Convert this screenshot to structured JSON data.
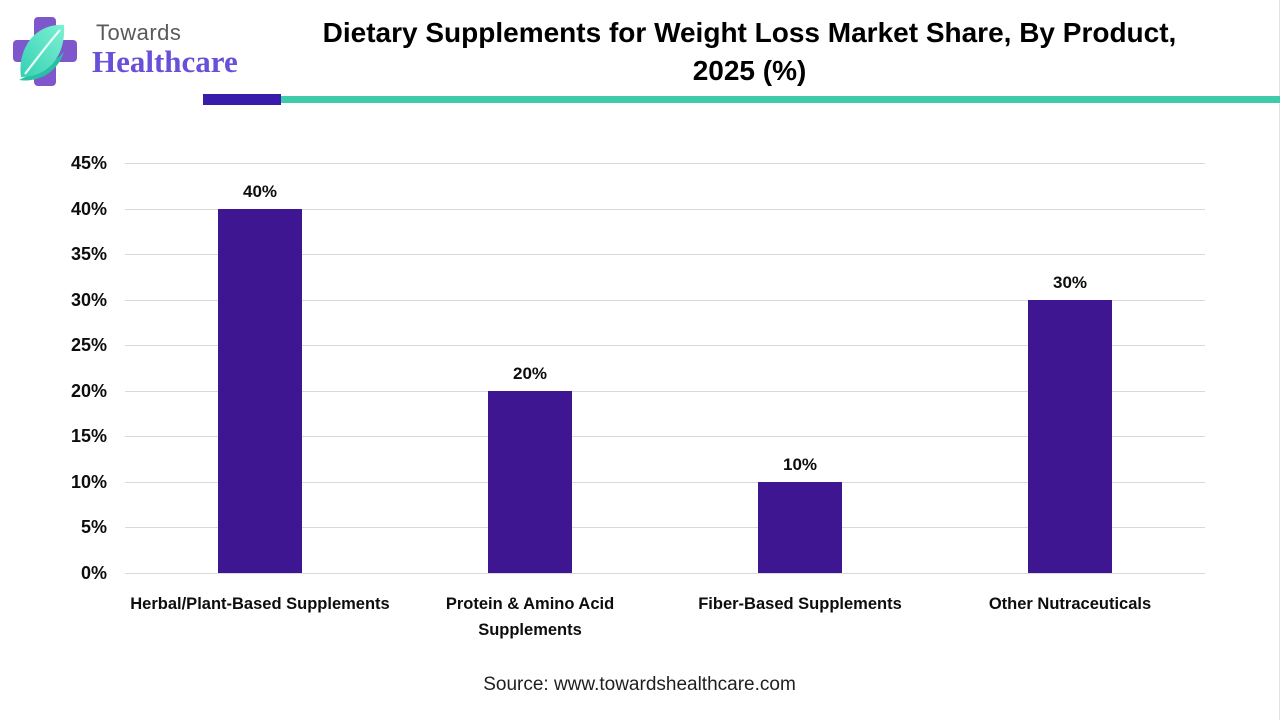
{
  "header": {
    "logo_towards": "Towards",
    "logo_healthcare": "Healthcare",
    "title_line1": "Dietary Supplements for Weight Loss Market Share, By Product,",
    "title_line2": "2025 (%)"
  },
  "chart_data": {
    "type": "bar",
    "title": "Dietary Supplements for Weight Loss Market Share, By Product, 2025 (%)",
    "categories": [
      "Herbal/Plant-Based Supplements",
      "Protein & Amino Acid Supplements",
      "Fiber-Based Supplements",
      "Other Nutraceuticals"
    ],
    "values": [
      40,
      20,
      10,
      30
    ],
    "data_labels": [
      "40%",
      "20%",
      "10%",
      "30%"
    ],
    "y_ticks": [
      0,
      5,
      10,
      15,
      20,
      25,
      30,
      35,
      40,
      45
    ],
    "y_tick_suffix": "%",
    "ylim": [
      0,
      45
    ],
    "grid": true,
    "legend": "none",
    "xlabel": "",
    "ylabel": ""
  },
  "footer": {
    "source": "Source: www.towardshealthcare.com"
  },
  "colors": {
    "bar": "#3f1692",
    "accent_purple": "#3a1caa",
    "accent_teal": "#3fcbab",
    "gridline": "#d9d9d9",
    "logo_gray": "#595959",
    "logo_purple": "#6a4fd8"
  }
}
